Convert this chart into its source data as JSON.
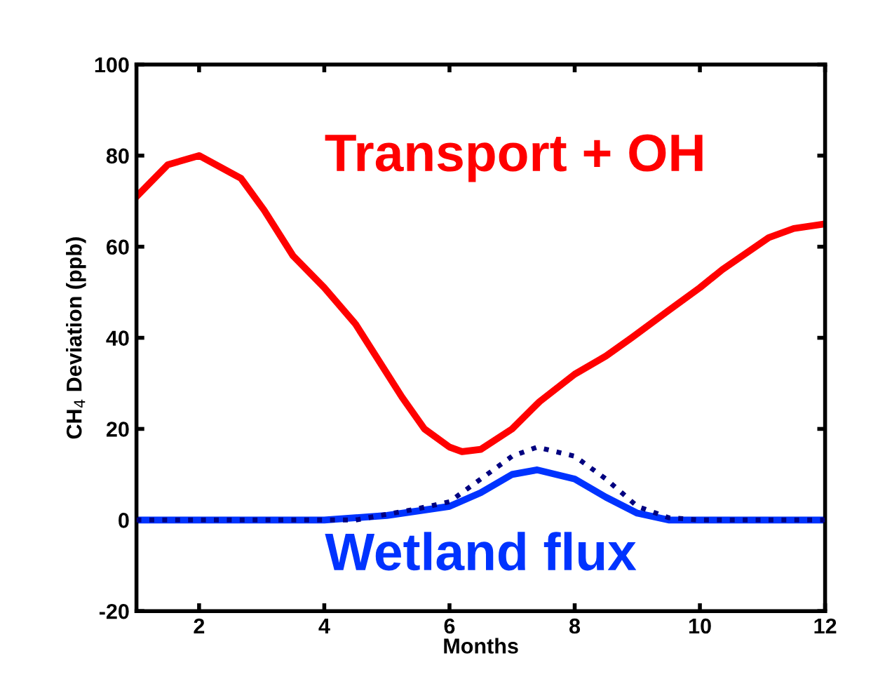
{
  "chart_data": {
    "type": "line",
    "xlabel": "Months",
    "ylabel": "CH$_{4}$ Deviation (ppb)",
    "xlim": [
      1,
      12
    ],
    "ylim": [
      -20,
      100
    ],
    "xticks": [
      2,
      4,
      6,
      8,
      10,
      12
    ],
    "yticks": [
      -20,
      0,
      20,
      40,
      60,
      80,
      100
    ],
    "grid": false,
    "legend": false,
    "series": [
      {
        "name": "Transport + OH",
        "color": "#ff0000",
        "line_style": "solid",
        "x": [
          1,
          1.5,
          2,
          2.67,
          3.04,
          3.5,
          4,
          4.5,
          5.24,
          5.6,
          6,
          6.2,
          6.5,
          7,
          7.44,
          8,
          8.5,
          8.91,
          9.5,
          10,
          10.36,
          11.1,
          11.5,
          12
        ],
        "values": [
          71,
          78,
          80,
          75,
          68,
          58,
          51,
          43,
          27,
          20,
          16,
          15,
          15.5,
          20,
          26,
          32,
          36,
          40,
          46,
          51,
          55,
          62,
          64,
          65
        ]
      },
      {
        "name": "Wetland flux",
        "color": "#0033ff",
        "line_style": "solid",
        "x": [
          1,
          4,
          5,
          5.5,
          6,
          6.5,
          7,
          7.4,
          8,
          8.5,
          9,
          9.5,
          12
        ],
        "values": [
          0,
          0,
          1,
          2,
          3,
          6,
          10,
          11,
          9,
          5,
          1.5,
          0,
          0
        ]
      },
      {
        "color": "#000080",
        "line_style": "dotted",
        "x": [
          1,
          4.5,
          5.5,
          6,
          6.5,
          7,
          7.4,
          8,
          8.5,
          9,
          9.5,
          10,
          12
        ],
        "values": [
          0,
          0,
          2.5,
          4,
          9,
          14,
          16,
          14,
          9,
          3,
          0.5,
          0,
          0
        ]
      }
    ]
  }
}
